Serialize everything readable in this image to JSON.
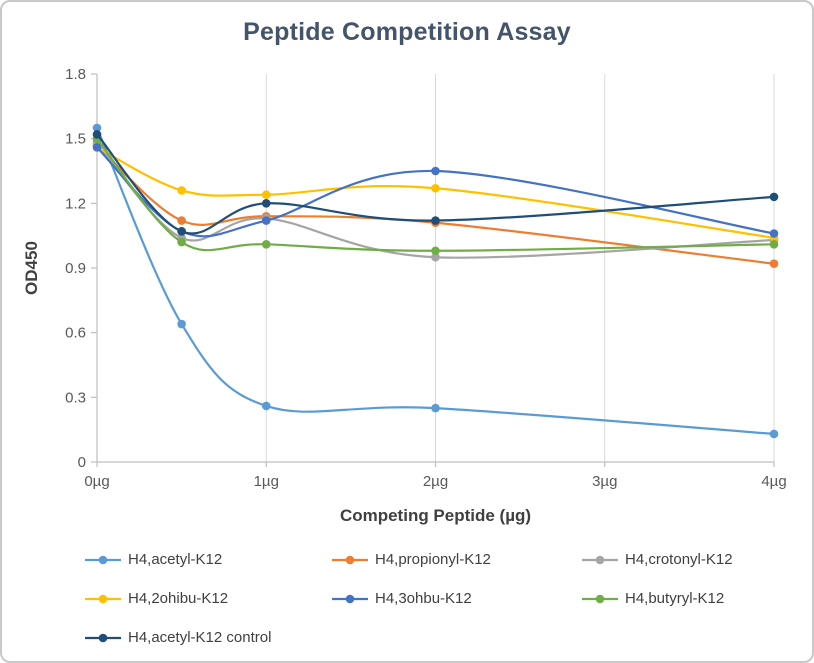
{
  "chart_data": {
    "type": "scatter",
    "subtype": "smooth-lines-with-markers",
    "title": "Peptide Competition Assay",
    "xlabel": "Competing Peptide (µg)",
    "ylabel": "OD450",
    "xlim": [
      0,
      4
    ],
    "ylim": [
      0,
      1.8
    ],
    "grid": "vertical-only",
    "legend_position": "bottom",
    "x_ticks": [
      {
        "value": 0,
        "label": "0µg"
      },
      {
        "value": 1,
        "label": "1µg"
      },
      {
        "value": 2,
        "label": "2µg"
      },
      {
        "value": 3,
        "label": "3µg"
      },
      {
        "value": 4,
        "label": "4µg"
      }
    ],
    "y_ticks": [
      {
        "value": 0,
        "label": "0"
      },
      {
        "value": 0.3,
        "label": "0.3"
      },
      {
        "value": 0.6,
        "label": "0.6"
      },
      {
        "value": 0.9,
        "label": "0.9"
      },
      {
        "value": 1.2,
        "label": "1.2"
      },
      {
        "value": 1.5,
        "label": "1.5"
      },
      {
        "value": 1.8,
        "label": "1.8"
      }
    ],
    "x": [
      0,
      0.5,
      1,
      2,
      4
    ],
    "series": [
      {
        "name": "H4,acetyl-K12",
        "color": "#5B9BD5",
        "values": [
          1.55,
          0.64,
          0.26,
          0.25,
          0.13
        ]
      },
      {
        "name": "H4,propionyl-K12",
        "color": "#ED7D31",
        "values": [
          1.47,
          1.12,
          1.14,
          1.11,
          0.92
        ]
      },
      {
        "name": "H4,crotonyl-K12",
        "color": "#A5A5A5",
        "values": [
          1.48,
          1.04,
          1.13,
          0.95,
          1.03
        ]
      },
      {
        "name": "H4,2ohibu-K12",
        "color": "#FFC000",
        "values": [
          1.46,
          1.26,
          1.24,
          1.27,
          1.04
        ]
      },
      {
        "name": "H4,3ohbu-K12",
        "color": "#4472C4",
        "values": [
          1.46,
          1.07,
          1.12,
          1.35,
          1.06
        ]
      },
      {
        "name": "H4,butyryl-K12",
        "color": "#70AD47",
        "values": [
          1.5,
          1.02,
          1.01,
          0.98,
          1.01
        ]
      },
      {
        "name": "H4,acetyl-K12 control",
        "color": "#1F4E79",
        "values": [
          1.52,
          1.07,
          1.2,
          1.12,
          1.23
        ]
      }
    ],
    "colors": {
      "gridline": "#D9D9D9",
      "axis": "#BFBFBF",
      "tick_label": "#595959",
      "title": "#44546A",
      "axis_title": "#404040",
      "legend_text": "#404040"
    }
  }
}
